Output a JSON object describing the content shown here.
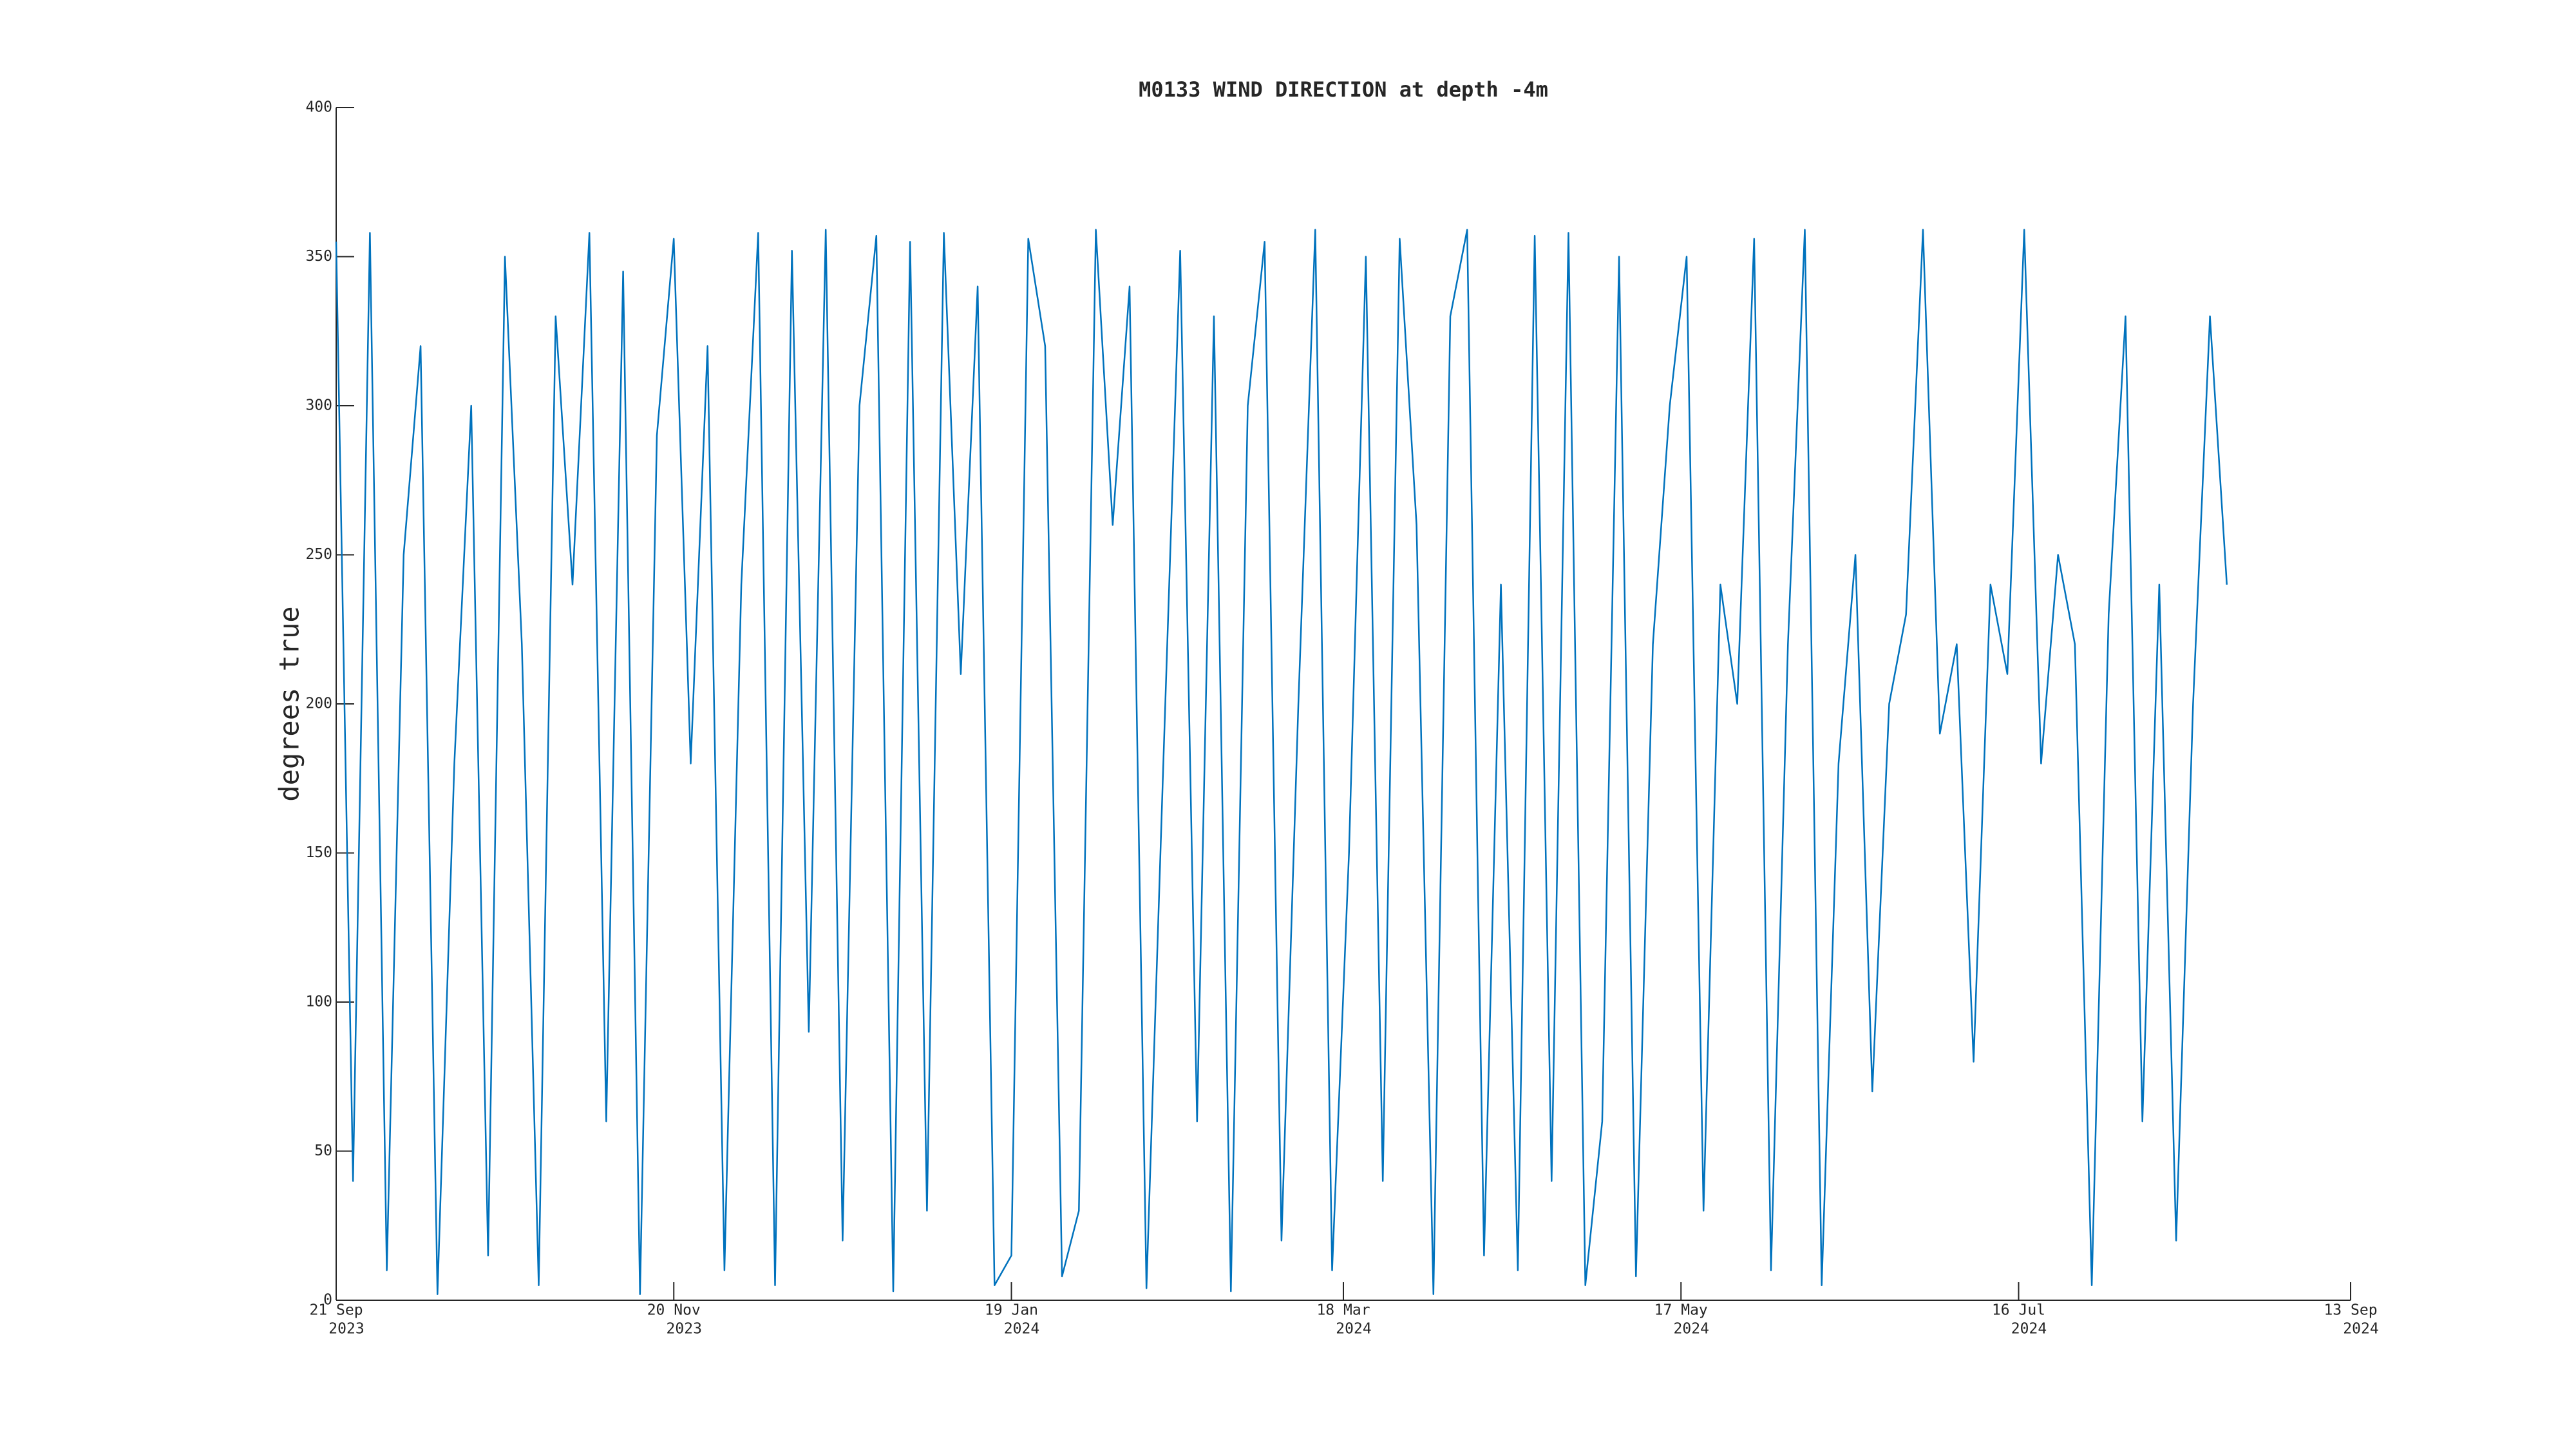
{
  "chart_data": {
    "type": "line",
    "title": "M0133 WIND DIRECTION at depth -4m",
    "y_label": "degrees true",
    "x": [
      "2023-09-21",
      "2023-09-24",
      "2023-09-27",
      "2023-09-30",
      "2023-10-03",
      "2023-10-06",
      "2023-10-09",
      "2023-10-12",
      "2023-10-15",
      "2023-10-18",
      "2023-10-21",
      "2023-10-24",
      "2023-10-27",
      "2023-10-30",
      "2023-11-02",
      "2023-11-05",
      "2023-11-08",
      "2023-11-11",
      "2023-11-14",
      "2023-11-17",
      "2023-11-20",
      "2023-11-23",
      "2023-11-26",
      "2023-11-29",
      "2023-12-02",
      "2023-12-05",
      "2023-12-08",
      "2023-12-11",
      "2023-12-14",
      "2023-12-17",
      "2023-12-20",
      "2023-12-23",
      "2023-12-26",
      "2023-12-29",
      "2024-01-01",
      "2024-01-04",
      "2024-01-07",
      "2024-01-10",
      "2024-01-13",
      "2024-01-16",
      "2024-01-19",
      "2024-01-22",
      "2024-01-25",
      "2024-01-28",
      "2024-01-31",
      "2024-02-03",
      "2024-02-06",
      "2024-02-09",
      "2024-02-12",
      "2024-02-15",
      "2024-02-18",
      "2024-02-21",
      "2024-02-24",
      "2024-02-27",
      "2024-03-01",
      "2024-03-04",
      "2024-03-07",
      "2024-03-10",
      "2024-03-13",
      "2024-03-16",
      "2024-03-19",
      "2024-03-22",
      "2024-03-25",
      "2024-03-28",
      "2024-03-31",
      "2024-04-03",
      "2024-04-06",
      "2024-04-09",
      "2024-04-12",
      "2024-04-15",
      "2024-04-18",
      "2024-04-21",
      "2024-04-24",
      "2024-04-27",
      "2024-04-30",
      "2024-05-03",
      "2024-05-06",
      "2024-05-09",
      "2024-05-12",
      "2024-05-15",
      "2024-05-18",
      "2024-05-21",
      "2024-05-24",
      "2024-05-27",
      "2024-05-30",
      "2024-06-02",
      "2024-06-05",
      "2024-06-08",
      "2024-06-11",
      "2024-06-14",
      "2024-06-17",
      "2024-06-20",
      "2024-06-23",
      "2024-06-26",
      "2024-06-29",
      "2024-07-02",
      "2024-07-05",
      "2024-07-08",
      "2024-07-11",
      "2024-07-14",
      "2024-07-17",
      "2024-07-20",
      "2024-07-23",
      "2024-07-26",
      "2024-07-29",
      "2024-08-01",
      "2024-08-04",
      "2024-08-07",
      "2024-08-10",
      "2024-08-13",
      "2024-08-16",
      "2024-08-19",
      "2024-08-22"
    ],
    "series": [
      {
        "name": "wind direction",
        "color": "#0072bd",
        "values": [
          355,
          40,
          358,
          10,
          250,
          320,
          2,
          180,
          300,
          15,
          350,
          220,
          5,
          330,
          240,
          358,
          60,
          345,
          2,
          290,
          356,
          180,
          320,
          10,
          240,
          358,
          5,
          352,
          90,
          359,
          20,
          300,
          357,
          3,
          355,
          30,
          358,
          210,
          340,
          5,
          15,
          356,
          320,
          8,
          30,
          359,
          260,
          340,
          4,
          180,
          352,
          60,
          330,
          3,
          300,
          355,
          20,
          200,
          359,
          10,
          150,
          350,
          40,
          356,
          260,
          2,
          330,
          359,
          15,
          240,
          10,
          357,
          40,
          358,
          5,
          60,
          350,
          8,
          220,
          300,
          350,
          30,
          240,
          200,
          356,
          10,
          220,
          359,
          5,
          180,
          250,
          70,
          200,
          230,
          359,
          190,
          220,
          80,
          240,
          210,
          359,
          180,
          250,
          220,
          5,
          230,
          330,
          60,
          240,
          20,
          200,
          330,
          240
        ]
      }
    ],
    "xlim": [
      "2023-09-21",
      "2024-09-13"
    ],
    "xticks": [
      {
        "value": "2023-09-21",
        "label": [
          "21 Sep",
          "2023"
        ]
      },
      {
        "value": "2023-11-20",
        "label": [
          "20 Nov",
          "2023"
        ]
      },
      {
        "value": "2024-01-19",
        "label": [
          "19 Jan",
          "2024"
        ]
      },
      {
        "value": "2024-03-18",
        "label": [
          "18 Mar",
          "2024"
        ]
      },
      {
        "value": "2024-05-17",
        "label": [
          "17 May",
          "2024"
        ]
      },
      {
        "value": "2024-07-16",
        "label": [
          "16 Jul",
          "2024"
        ]
      },
      {
        "value": "2024-09-13",
        "label": [
          "13 Sep",
          "2024"
        ]
      }
    ],
    "ylim": [
      0,
      400
    ],
    "yticks": [
      0,
      50,
      100,
      150,
      200,
      250,
      300,
      350,
      400
    ]
  }
}
